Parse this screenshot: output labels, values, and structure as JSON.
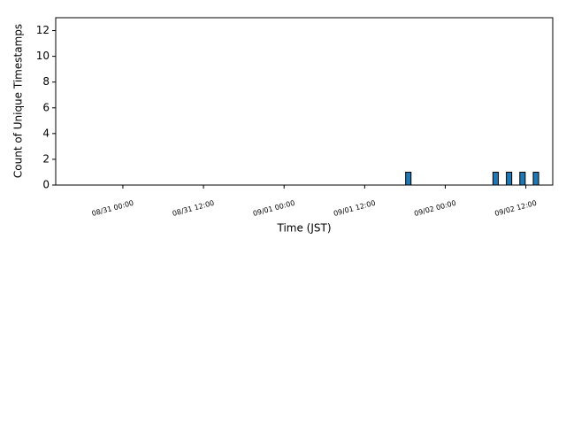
{
  "chart_data": {
    "type": "bar",
    "x_label": "Time (JST)",
    "y_label": "Count of Unique Timestamps",
    "x": [
      "09/01 18:30",
      "09/02 07:30",
      "09/02 09:30",
      "09/02 11:30",
      "09/02 13:30"
    ],
    "values": [
      1,
      1,
      1,
      1,
      1
    ],
    "color": "#1f77b4",
    "xlim": [
      "08/30 14:00",
      "09/02 16:00"
    ],
    "xticks": [
      "08/31 00:00",
      "08/31 12:00",
      "09/01 00:00",
      "09/01 12:00",
      "09/02 00:00",
      "09/02 12:00"
    ],
    "ylim": [
      0,
      13
    ],
    "yticks": [
      0,
      2,
      4,
      6,
      8,
      10,
      12
    ],
    "grid": false
  }
}
